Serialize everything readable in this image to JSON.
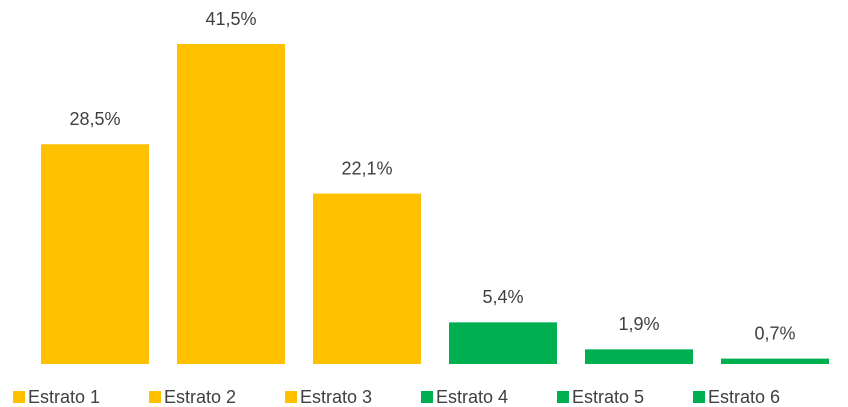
{
  "chart_data": {
    "type": "bar",
    "categories": [
      "Estrato 1",
      "Estrato 2",
      "Estrato 3",
      "Estrato 4",
      "Estrato 5",
      "Estrato 6"
    ],
    "values": [
      28.5,
      41.5,
      22.1,
      5.4,
      1.9,
      0.7
    ],
    "value_labels": [
      "28,5%",
      "41,5%",
      "22,1%",
      "5,4%",
      "1,9%",
      "0,7%"
    ],
    "colors": [
      "#ffc000",
      "#ffc000",
      "#ffc000",
      "#00b050",
      "#00b050",
      "#00b050"
    ],
    "legend": "bottom"
  }
}
